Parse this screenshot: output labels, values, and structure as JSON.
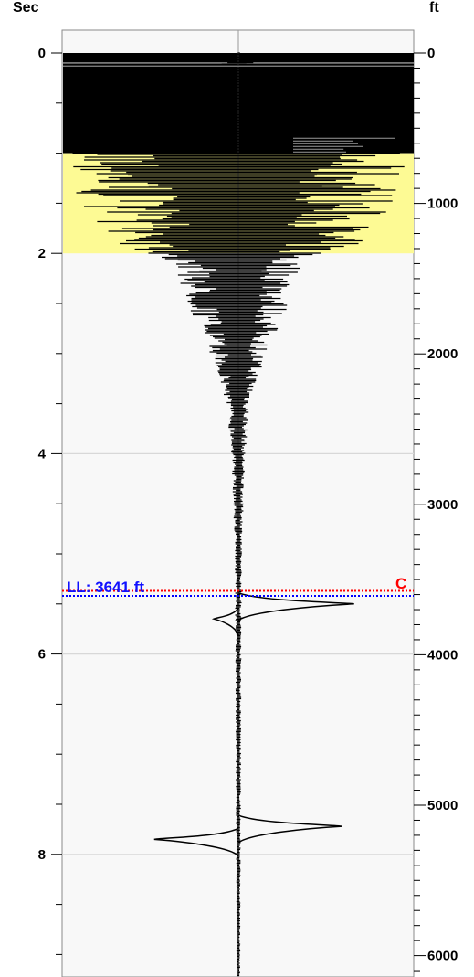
{
  "chart_data": {
    "type": "line",
    "left_axis": {
      "title": "Sec",
      "range": [
        -0.15,
        9.3
      ],
      "ticks": [
        0,
        2,
        4,
        6,
        8
      ],
      "tick_labels": [
        "0",
        "2",
        "4",
        "6",
        "8"
      ],
      "minor_step": 0.5
    },
    "right_axis": {
      "title": "ft",
      "range": [
        -50,
        6175
      ],
      "ticks": [
        0,
        1000,
        2000,
        3000,
        4000,
        5000,
        6000
      ],
      "tick_labels": [
        "0",
        "1000",
        "2000",
        "3000",
        "4000",
        "5000",
        "6000"
      ],
      "minor_step": 100
    },
    "grid_horizontal": true,
    "horizontal_gridlines_sec": [
      0.1,
      4,
      6,
      8
    ],
    "center_line": true,
    "bands": [
      {
        "from": 0,
        "to": 1,
        "color": "#000000"
      },
      {
        "from": 1,
        "to": 2,
        "color": "#fdfa94"
      }
    ],
    "markers": [
      {
        "label": "C",
        "at": 5.37,
        "color": "#ff0000",
        "style": "dotted"
      },
      {
        "label": "LL: 3641 ft",
        "at": 5.42,
        "color": "#0000ff",
        "style": "dotted"
      }
    ],
    "trace_envelope": [
      {
        "t": 0.0,
        "amp": 0.01
      },
      {
        "t": 0.9,
        "amp": 0.9
      },
      {
        "t": 1.0,
        "amp": 0.95
      },
      {
        "t": 1.4,
        "amp": 0.95
      },
      {
        "t": 1.9,
        "amp": 0.7
      },
      {
        "t": 2.1,
        "amp": 0.38
      },
      {
        "t": 2.5,
        "amp": 0.3
      },
      {
        "t": 3.0,
        "amp": 0.16
      },
      {
        "t": 3.5,
        "amp": 0.07
      },
      {
        "t": 4.0,
        "amp": 0.04
      },
      {
        "t": 5.0,
        "amp": 0.02
      },
      {
        "t": 9.3,
        "amp": 0.01
      }
    ],
    "events": [
      {
        "t": 5.5,
        "direction": "right",
        "amp": 0.66
      },
      {
        "t": 5.65,
        "direction": "left",
        "amp": -0.14
      },
      {
        "t": 7.72,
        "direction": "right",
        "amp": 0.59
      },
      {
        "t": 7.85,
        "direction": "left",
        "amp": -0.48
      }
    ]
  }
}
